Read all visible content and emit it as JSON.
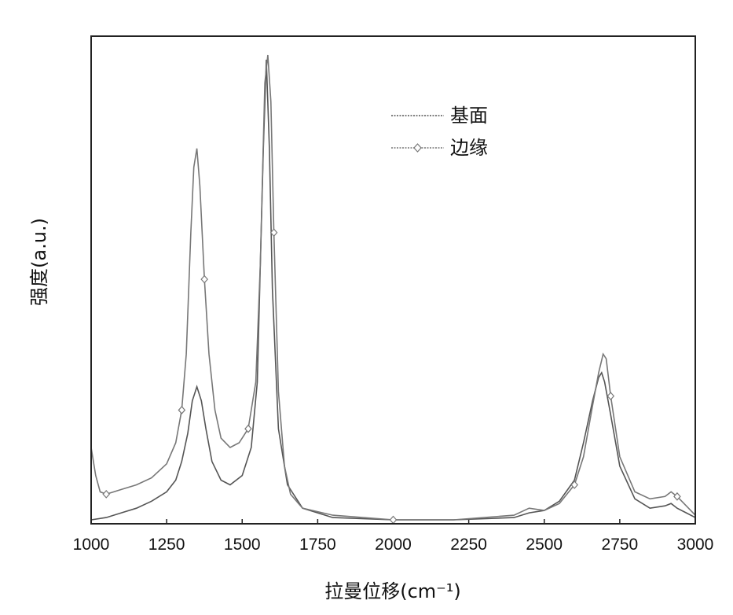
{
  "chart_data": {
    "type": "line",
    "xlabel": "拉曼位移(cm⁻¹)",
    "ylabel": "强度(a.u.)",
    "xlim": [
      1000,
      3000
    ],
    "ylim": [
      0,
      100
    ],
    "xticks": [
      "1000",
      "1250",
      "1500",
      "1750",
      "2000",
      "2250",
      "2500",
      "2750",
      "3000"
    ],
    "xtick_values": [
      1000,
      1250,
      1500,
      1750,
      2000,
      2250,
      2500,
      2750,
      3000
    ],
    "grid": false,
    "legend_position": "top-center",
    "colors": {
      "basal": "#555555",
      "edge": "#777777",
      "axis": "#222222"
    },
    "series": [
      {
        "name": "基面",
        "marker": "none",
        "x": [
          1000,
          1050,
          1100,
          1150,
          1200,
          1250,
          1280,
          1300,
          1320,
          1335,
          1350,
          1365,
          1380,
          1400,
          1430,
          1460,
          1500,
          1530,
          1550,
          1570,
          1580,
          1590,
          1600,
          1620,
          1650,
          1700,
          1800,
          2000,
          2200,
          2400,
          2450,
          2500,
          2550,
          2600,
          2630,
          2660,
          2680,
          2690,
          2700,
          2720,
          2750,
          2800,
          2850,
          2900,
          2920,
          2940,
          2970,
          3000
        ],
        "y": [
          0.5,
          1.0,
          2.0,
          3.0,
          4.5,
          6.5,
          9.0,
          13.0,
          19.0,
          26.0,
          29.0,
          26.0,
          20.0,
          13.0,
          9.0,
          8.0,
          10.0,
          16.0,
          30.0,
          80.0,
          99.0,
          80.0,
          50.0,
          20.0,
          8.0,
          3.0,
          1.0,
          0.5,
          0.5,
          1.0,
          2.0,
          2.5,
          4.5,
          9.0,
          17.0,
          26.0,
          31.0,
          32.0,
          30.0,
          23.0,
          12.0,
          5.0,
          3.0,
          3.5,
          4.0,
          3.0,
          2.0,
          1.0
        ]
      },
      {
        "name": "边缘",
        "marker": "diamond",
        "x": [
          1000,
          1015,
          1030,
          1050,
          1100,
          1150,
          1200,
          1250,
          1280,
          1300,
          1315,
          1330,
          1340,
          1350,
          1360,
          1375,
          1390,
          1410,
          1430,
          1460,
          1490,
          1520,
          1545,
          1560,
          1575,
          1585,
          1595,
          1605,
          1620,
          1640,
          1660,
          1700,
          1800,
          2000,
          2200,
          2400,
          2450,
          2500,
          2550,
          2600,
          2630,
          2660,
          2680,
          2695,
          2705,
          2720,
          2750,
          2800,
          2850,
          2900,
          2920,
          2940,
          2970,
          3000
        ],
        "y": [
          16.0,
          10.0,
          6.5,
          6.0,
          7.0,
          8.0,
          9.5,
          12.5,
          17.0,
          24.0,
          36.0,
          62.0,
          76.0,
          80.0,
          72.0,
          52.0,
          36.0,
          24.0,
          18.0,
          16.0,
          17.0,
          20.0,
          30.0,
          55.0,
          94.0,
          100.0,
          90.0,
          62.0,
          28.0,
          12.0,
          6.0,
          3.0,
          1.5,
          0.5,
          0.5,
          1.5,
          3.0,
          2.5,
          4.0,
          8.0,
          14.0,
          25.0,
          32.0,
          36.0,
          35.0,
          27.0,
          14.0,
          6.5,
          5.0,
          5.5,
          6.5,
          5.5,
          3.5,
          1.5
        ]
      }
    ]
  }
}
